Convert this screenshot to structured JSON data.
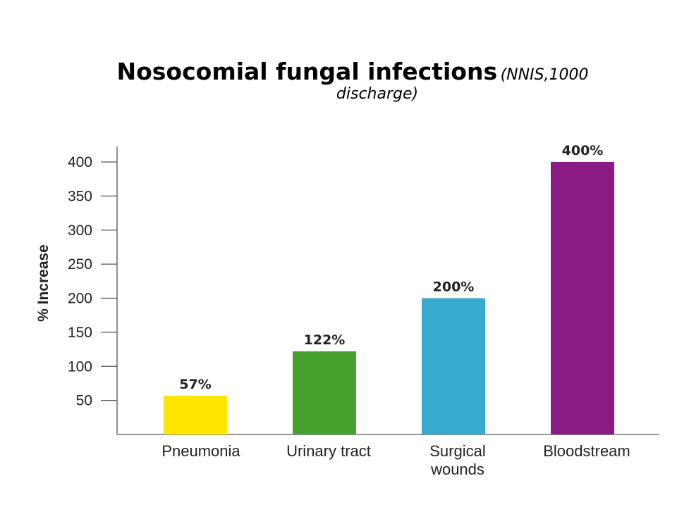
{
  "chart_data": {
    "type": "bar",
    "title": "Nosocomial fungal infections",
    "subtitle": "(NNIS,1000 discharge)",
    "subtitle_parts": [
      "(NNIS,1000",
      "discharge)"
    ],
    "ylabel": "% Increase",
    "xlabel": "",
    "categories": [
      [
        "Pneumonia"
      ],
      [
        "Urinary tract"
      ],
      [
        "Surgical",
        "wounds"
      ],
      [
        "Bloodstream"
      ]
    ],
    "values": [
      57,
      122,
      200,
      400
    ],
    "data_labels": [
      "57%",
      "122%",
      "200%",
      "400%"
    ],
    "colors": [
      "#ffe600",
      "#45a02e",
      "#36aacf",
      "#8b1a85"
    ],
    "yticks": [
      50,
      100,
      150,
      200,
      250,
      300,
      350,
      400
    ],
    "ylim": [
      0,
      420
    ],
    "grid": false,
    "legend": "none"
  }
}
